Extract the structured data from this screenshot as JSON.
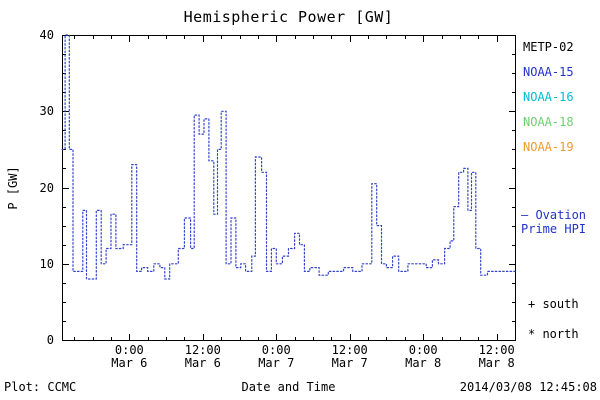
{
  "legend": {
    "satellites": [
      {
        "label": "METP-02",
        "color": "#000000"
      },
      {
        "label": "NOAA-15",
        "color": "#2233cc"
      },
      {
        "label": "NOAA-16",
        "color": "#00bcd0"
      },
      {
        "label": "NOAA-18",
        "color": "#6fcf6f"
      },
      {
        "label": "NOAA-19",
        "color": "#f09a2e"
      }
    ],
    "ovation_line1": "— Ovation",
    "ovation_line2": "Prime HPI",
    "ovation_color": "#2233cc",
    "south_marker": "+ south",
    "north_marker": "* north"
  },
  "footer": {
    "plot_credit": "Plot: CCMC",
    "timestamp": "2014/03/08 12:45:08"
  },
  "chart_data": {
    "type": "line",
    "title": "Hemispheric Power [GW]",
    "xlabel": "Date and Time",
    "ylabel": "P [GW]",
    "ylim": [
      0,
      40
    ],
    "yticks": [
      0,
      10,
      20,
      30,
      40
    ],
    "xlim_hours": [
      0,
      74
    ],
    "x_unit": "hours from left edge of axis",
    "xticks": [
      {
        "t": 11,
        "line1": "0:00",
        "line2": "Mar 6"
      },
      {
        "t": 23,
        "line1": "12:00",
        "line2": "Mar 6"
      },
      {
        "t": 35,
        "line1": "0:00",
        "line2": "Mar 7"
      },
      {
        "t": 47,
        "line1": "12:00",
        "line2": "Mar 7"
      },
      {
        "t": 59,
        "line1": "0:00",
        "line2": "Mar 8"
      },
      {
        "t": 71,
        "line1": "12:00",
        "line2": "Mar 8"
      }
    ],
    "line": {
      "color": "#3344cc",
      "style": "dotted",
      "kind": "step"
    },
    "points": [
      [
        0,
        25
      ],
      [
        0.5,
        40
      ],
      [
        1.2,
        25
      ],
      [
        1.8,
        9
      ],
      [
        3.4,
        17
      ],
      [
        4.0,
        8
      ],
      [
        5.6,
        17
      ],
      [
        6.4,
        10
      ],
      [
        7.2,
        12
      ],
      [
        8.0,
        16.5
      ],
      [
        8.8,
        12
      ],
      [
        10.0,
        12.5
      ],
      [
        11.4,
        23
      ],
      [
        12.2,
        9
      ],
      [
        13.0,
        9.5
      ],
      [
        14.0,
        9
      ],
      [
        15.0,
        10
      ],
      [
        16.0,
        9.5
      ],
      [
        16.8,
        8
      ],
      [
        17.6,
        10
      ],
      [
        19.0,
        12
      ],
      [
        20.0,
        16
      ],
      [
        21.0,
        12
      ],
      [
        21.6,
        29.5
      ],
      [
        22.4,
        27
      ],
      [
        23.2,
        29
      ],
      [
        24.0,
        23.5
      ],
      [
        24.8,
        16.5
      ],
      [
        25.4,
        25
      ],
      [
        26.0,
        30
      ],
      [
        26.8,
        10
      ],
      [
        27.6,
        16
      ],
      [
        28.4,
        9.5
      ],
      [
        29.2,
        10
      ],
      [
        30.0,
        9
      ],
      [
        31.0,
        11
      ],
      [
        31.6,
        24
      ],
      [
        32.6,
        22
      ],
      [
        33.4,
        9
      ],
      [
        34.2,
        12
      ],
      [
        35.0,
        10
      ],
      [
        36.0,
        11
      ],
      [
        37.0,
        12
      ],
      [
        38.0,
        14
      ],
      [
        38.8,
        12.5
      ],
      [
        39.6,
        9
      ],
      [
        40.5,
        9.5
      ],
      [
        42.0,
        8.5
      ],
      [
        43.5,
        9
      ],
      [
        44.5,
        9
      ],
      [
        46.0,
        9.5
      ],
      [
        47.5,
        9
      ],
      [
        49.0,
        10
      ],
      [
        50.6,
        20.5
      ],
      [
        51.4,
        15
      ],
      [
        52.2,
        10
      ],
      [
        53.0,
        9.5
      ],
      [
        54.0,
        11
      ],
      [
        55.0,
        9
      ],
      [
        56.5,
        10
      ],
      [
        58.0,
        10
      ],
      [
        59.5,
        9.5
      ],
      [
        60.5,
        10.5
      ],
      [
        61.5,
        10
      ],
      [
        62.5,
        12
      ],
      [
        63.4,
        13
      ],
      [
        64.0,
        17.5
      ],
      [
        64.8,
        22
      ],
      [
        65.6,
        22.5
      ],
      [
        66.3,
        17
      ],
      [
        66.9,
        22
      ],
      [
        67.6,
        12
      ],
      [
        68.4,
        8.5
      ],
      [
        69.5,
        9
      ],
      [
        74,
        9
      ]
    ]
  }
}
